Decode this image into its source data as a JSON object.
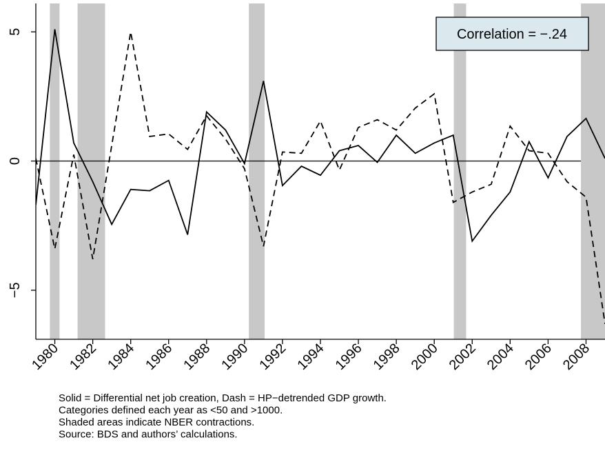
{
  "chart_data": {
    "type": "line",
    "annotation": "Correlation = −.24",
    "notes": [
      "Solid = Differential net job creation, Dash = HP−detrended GDP growth.",
      "Categories defined each year as <50 and >1000.",
      "Shaded areas indicate NBER contractions.",
      "Source: BDS and authors’ calculations."
    ],
    "x": [
      1979,
      1980,
      1981,
      1982,
      1983,
      1984,
      1985,
      1986,
      1987,
      1988,
      1989,
      1990,
      1991,
      1992,
      1993,
      1994,
      1995,
      1996,
      1997,
      1998,
      1999,
      2000,
      2001,
      2002,
      2003,
      2004,
      2005,
      2006,
      2007,
      2008,
      2009
    ],
    "series": [
      {
        "color": "#000000",
        "dashed": false,
        "values": [
          -1.7,
          5.1,
          0.7,
          -0.8,
          -2.45,
          -1.1,
          -1.15,
          -0.75,
          -2.85,
          1.9,
          1.2,
          -0.1,
          3.1,
          -0.95,
          -0.2,
          -0.55,
          0.4,
          0.6,
          -0.05,
          1.0,
          0.3,
          0.7,
          1.0,
          -3.1,
          -2.1,
          -1.2,
          0.75,
          -0.65,
          0.95,
          1.65,
          0.1
        ]
      },
      {
        "color": "#000000",
        "dashed": true,
        "values": [
          0.1,
          -3.4,
          0.25,
          -3.8,
          0.6,
          5.0,
          0.95,
          1.05,
          0.45,
          1.75,
          0.85,
          -0.3,
          -3.3,
          0.35,
          0.3,
          1.55,
          -0.35,
          1.3,
          1.6,
          1.2,
          2.05,
          2.6,
          -1.6,
          -1.2,
          -0.9,
          1.35,
          0.4,
          0.3,
          -0.8,
          -1.4,
          -6.3
        ]
      }
    ],
    "shaded_regions": [
      [
        1979.74,
        1980.25
      ],
      [
        1981.2,
        1982.65
      ],
      [
        1990.23,
        1991.06
      ],
      [
        2001.03,
        2001.68
      ],
      [
        2007.73,
        2009
      ]
    ],
    "shade_color": "#c8c8c8",
    "hline": 0,
    "xlim": [
      1979,
      2009
    ],
    "ylim": [
      -6.9,
      6.1
    ],
    "xticks": [
      1980,
      1982,
      1984,
      1986,
      1988,
      1990,
      1992,
      1994,
      1996,
      1998,
      2000,
      2002,
      2004,
      2006,
      2008
    ],
    "yticks": [
      {
        "value": -5,
        "label": "−5"
      },
      0,
      5
    ]
  }
}
